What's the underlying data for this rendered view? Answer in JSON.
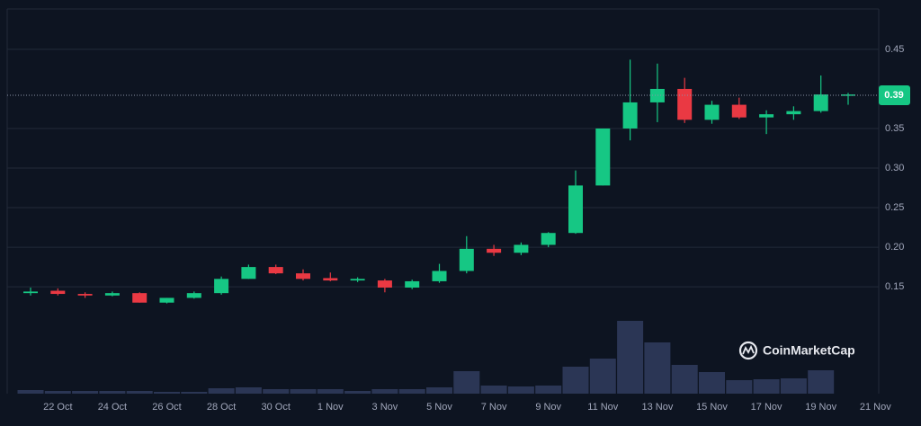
{
  "chart_data": {
    "type": "candlestick",
    "categories": [
      null,
      "22 Oct",
      null,
      "24 Oct",
      null,
      "26 Oct",
      null,
      "28 Oct",
      null,
      "30 Oct",
      null,
      "1 Nov",
      null,
      "3 Nov",
      null,
      "5 Nov",
      null,
      "7 Nov",
      null,
      "9 Nov",
      null,
      "11 Nov",
      null,
      "13 Nov",
      null,
      "15 Nov",
      null,
      "17 Nov",
      null,
      "19 Nov",
      null,
      "21 Nov"
    ],
    "open": [
      0.142,
      0.145,
      0.141,
      0.139,
      0.142,
      0.13,
      0.136,
      0.142,
      0.16,
      0.175,
      0.167,
      0.161,
      0.158,
      0.158,
      0.149,
      0.157,
      0.17,
      0.198,
      0.193,
      0.203,
      0.218,
      0.278,
      0.35,
      0.383,
      0.4,
      0.361,
      0.38,
      0.364,
      0.368,
      0.372,
      0.392,
      null
    ],
    "high": [
      0.149,
      0.148,
      0.143,
      0.144,
      0.143,
      0.136,
      0.144,
      0.163,
      0.178,
      0.178,
      0.172,
      0.168,
      0.162,
      0.16,
      0.159,
      0.179,
      0.214,
      0.203,
      0.206,
      0.219,
      0.297,
      0.35,
      0.437,
      0.432,
      0.414,
      0.385,
      0.389,
      0.373,
      0.378,
      0.417,
      0.395,
      null
    ],
    "low": [
      0.139,
      0.139,
      0.136,
      0.138,
      0.13,
      0.129,
      0.135,
      0.14,
      0.16,
      0.166,
      0.158,
      0.157,
      0.156,
      0.143,
      0.147,
      0.155,
      0.167,
      0.189,
      0.19,
      0.2,
      0.217,
      0.278,
      0.335,
      0.358,
      0.357,
      0.356,
      0.362,
      0.343,
      0.361,
      0.37,
      0.38,
      null
    ],
    "close": [
      0.144,
      0.141,
      0.139,
      0.142,
      0.13,
      0.136,
      0.142,
      0.16,
      0.175,
      0.167,
      0.16,
      0.158,
      0.16,
      0.149,
      0.157,
      0.17,
      0.198,
      0.193,
      0.203,
      0.218,
      0.278,
      0.35,
      0.383,
      0.4,
      0.361,
      0.38,
      0.364,
      0.368,
      0.372,
      0.393,
      0.393,
      null
    ],
    "volume": [
      4,
      3,
      3,
      3,
      3,
      2,
      2,
      6,
      7,
      5,
      5,
      5,
      3,
      5,
      5,
      7,
      25,
      9,
      8,
      9,
      30,
      39,
      81,
      57,
      32,
      24,
      15,
      16,
      17,
      26,
      0,
      null
    ],
    "up_color": "#16c784",
    "down_color": "#ea3943",
    "volume_color": "#2b3655",
    "ylim": [
      0.015,
      0.501
    ],
    "yticks": [
      0.15,
      {
        "value": 0.2,
        "label": "0.20"
      },
      0.25,
      {
        "value": 0.3,
        "label": "0.30"
      },
      0.35,
      0.45
    ],
    "grid": true,
    "current_price": {
      "value": 0.392,
      "label": "0.39"
    },
    "watermark": "CoinMarketCap"
  }
}
